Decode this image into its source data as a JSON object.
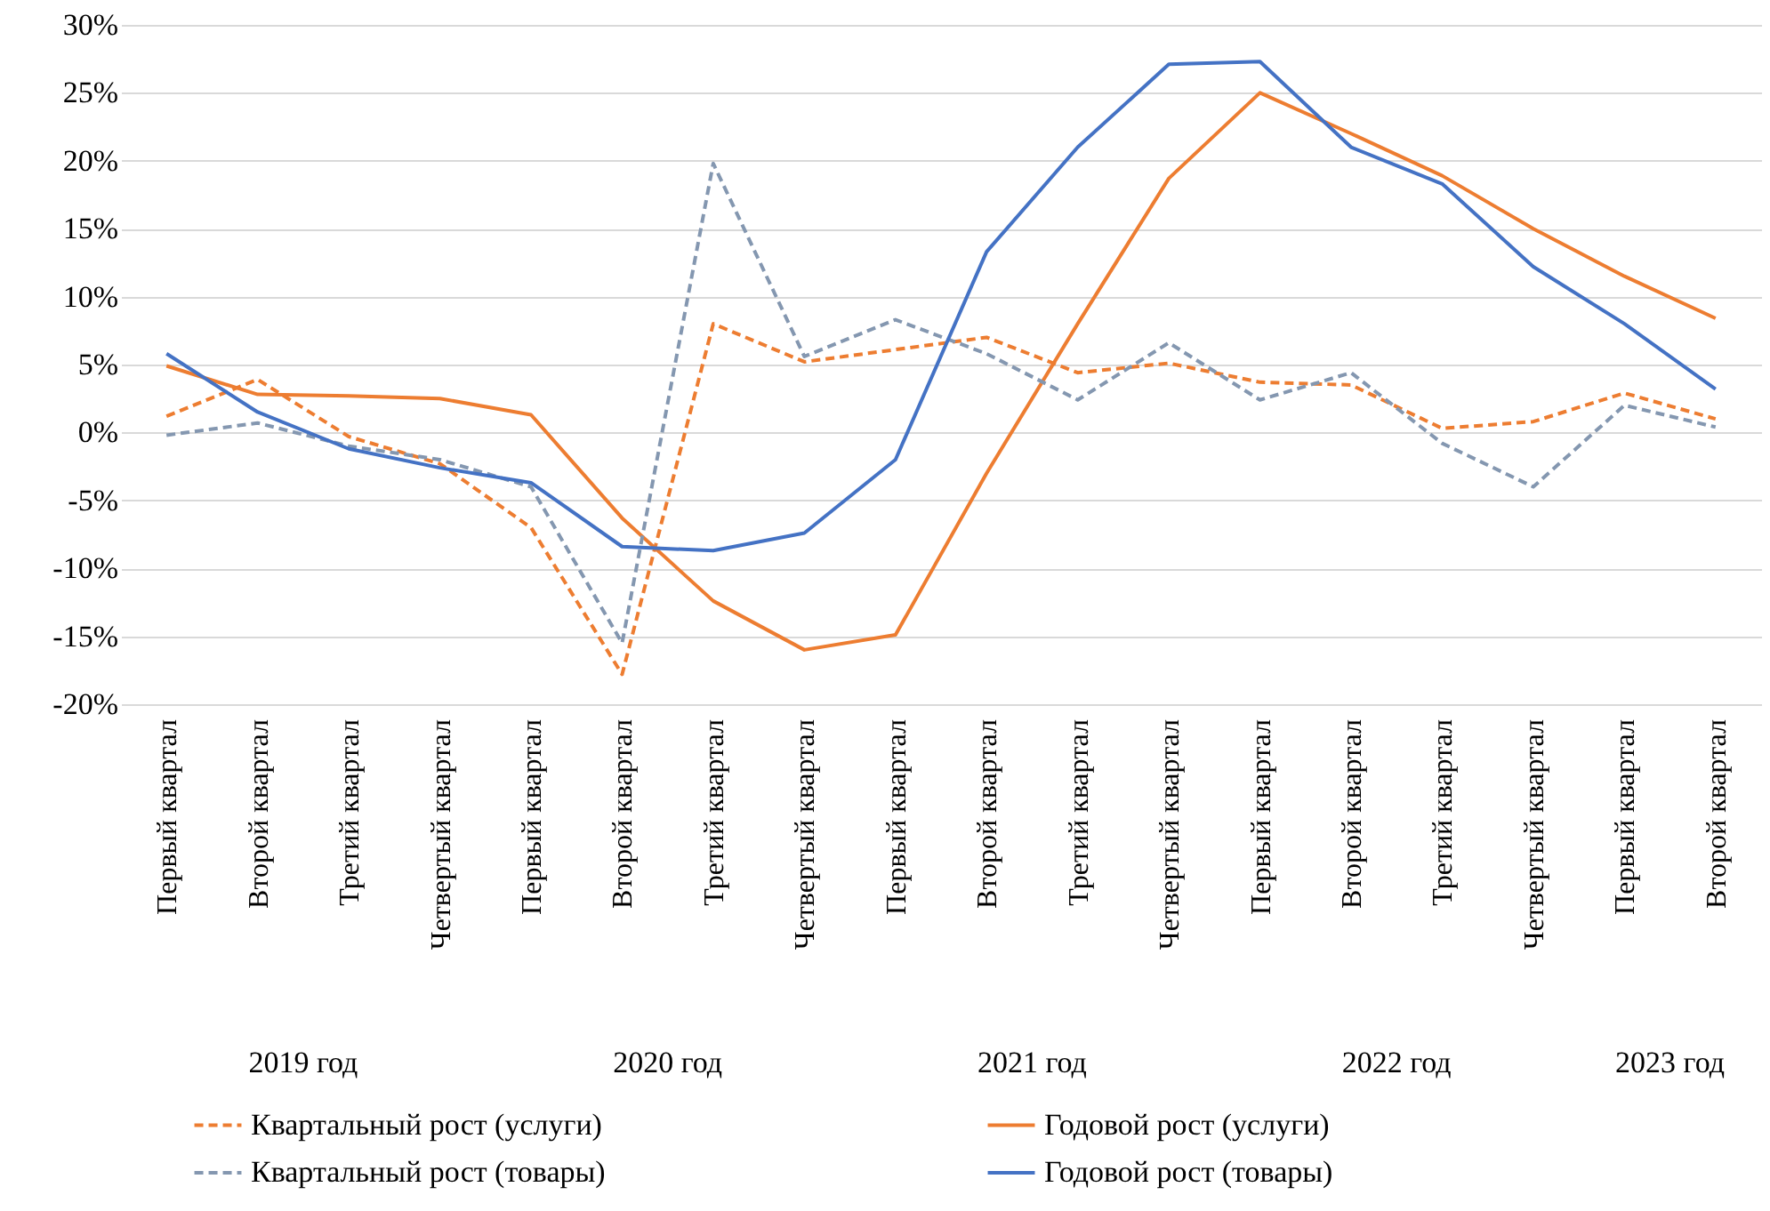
{
  "chart_data": {
    "type": "line",
    "categories": [
      "Первый квартал",
      "Второй квартал",
      "Третий квартал",
      "Четвертый квартал",
      "Первый квартал",
      "Второй квартал",
      "Третий квартал",
      "Четвертый квартал",
      "Первый квартал",
      "Второй квартал",
      "Третий квартал",
      "Четвертый квартал",
      "Первый квартал",
      "Второй квартал",
      "Третий квартал",
      "Четвертый квартал",
      "Первый квартал",
      "Второй квартал"
    ],
    "series": [
      {
        "name": "Квартальный рост (услуги)",
        "color": "#ed7d31",
        "line_style": "dashed",
        "values": [
          1.2,
          3.9,
          -0.3,
          -2.3,
          -7,
          -17.8,
          8,
          5.2,
          6.1,
          7,
          4.4,
          5.1,
          3.7,
          3.5,
          0.3,
          0.8,
          2.9,
          1.0
        ]
      },
      {
        "name": "Годовой рост (услуги)",
        "color": "#ed7d31",
        "line_style": "solid",
        "values": [
          4.9,
          2.8,
          2.7,
          2.5,
          1.3,
          -6.3,
          -12.4,
          -16,
          -14.9,
          -3,
          8,
          18.7,
          25,
          22,
          18.9,
          15,
          11.5,
          8.4
        ]
      },
      {
        "name": "Квартальный рост (товары)",
        "color": "#8497b0",
        "line_style": "dashed",
        "values": [
          -0.2,
          0.7,
          -1,
          -2,
          -4,
          -15.5,
          19.8,
          5.6,
          8.3,
          5.8,
          2.4,
          6.6,
          2.4,
          4.4,
          -0.8,
          -4,
          2,
          0.4
        ]
      },
      {
        "name": "Годовой рост (товары)",
        "color": "#4472c4",
        "line_style": "solid",
        "values": [
          5.8,
          1.5,
          -1.2,
          -2.6,
          -3.7,
          -8.4,
          -8.7,
          -7.4,
          -2,
          13.3,
          21,
          27.1,
          27.3,
          21,
          18.3,
          12.2,
          8,
          3.2
        ]
      }
    ],
    "ylim": [
      -20,
      30
    ],
    "yticks": [
      {
        "value": -20,
        "label": "-20%"
      },
      {
        "value": -15,
        "label": "-15%"
      },
      {
        "value": -10,
        "label": "-10%"
      },
      {
        "value": -5,
        "label": "-5%"
      },
      {
        "value": 0,
        "label": "0%"
      },
      {
        "value": 5,
        "label": "5%"
      },
      {
        "value": 10,
        "label": "10%"
      },
      {
        "value": 15,
        "label": "15%"
      },
      {
        "value": 20,
        "label": "20%"
      },
      {
        "value": 25,
        "label": "25%"
      },
      {
        "value": 30,
        "label": "30%"
      }
    ],
    "grid": "y",
    "legend": "bottom",
    "marker": "none",
    "annotations": [
      "2019 год",
      "2020 год",
      "2021 год",
      "2022 год",
      "2023 год"
    ]
  }
}
